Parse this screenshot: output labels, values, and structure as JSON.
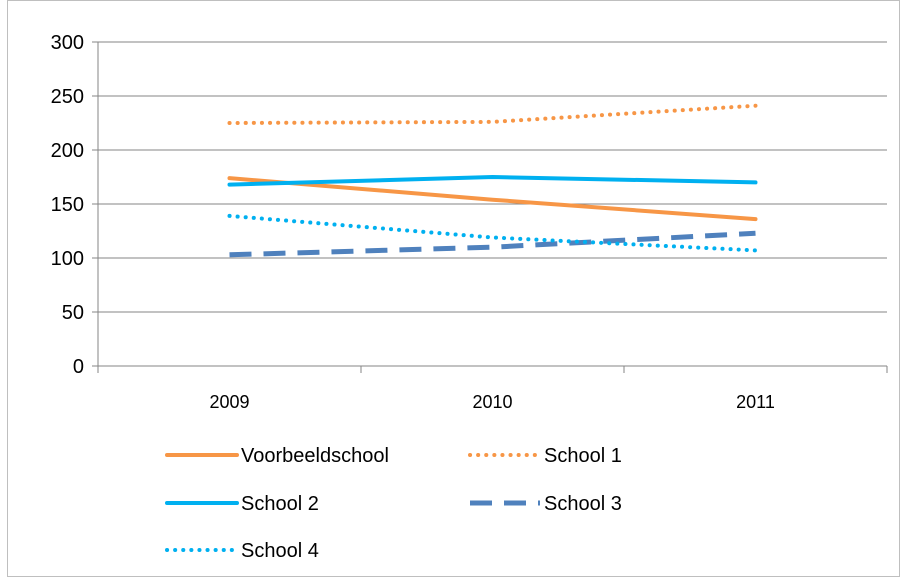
{
  "chart_data": {
    "type": "line",
    "categories": [
      "2009",
      "2010",
      "2011"
    ],
    "ylim": [
      0,
      300
    ],
    "yticks": [
      0,
      50,
      100,
      150,
      200,
      250,
      300
    ],
    "grid": true,
    "legend_position": "bottom",
    "series": [
      {
        "name": "Voorbeeldschool",
        "values": [
          174,
          154,
          136
        ],
        "color": "#f79646",
        "style": "solid"
      },
      {
        "name": "School 1",
        "values": [
          225,
          226,
          241
        ],
        "color": "#f79646",
        "style": "dotted"
      },
      {
        "name": "School 2",
        "values": [
          168,
          175,
          170
        ],
        "color": "#00b0f0",
        "style": "solid"
      },
      {
        "name": "School 3",
        "values": [
          103,
          110,
          123
        ],
        "color": "#4f81bd",
        "style": "dashed"
      },
      {
        "name": "School 4",
        "values": [
          139,
          119,
          107
        ],
        "color": "#00b0f0",
        "style": "dotted"
      }
    ]
  }
}
